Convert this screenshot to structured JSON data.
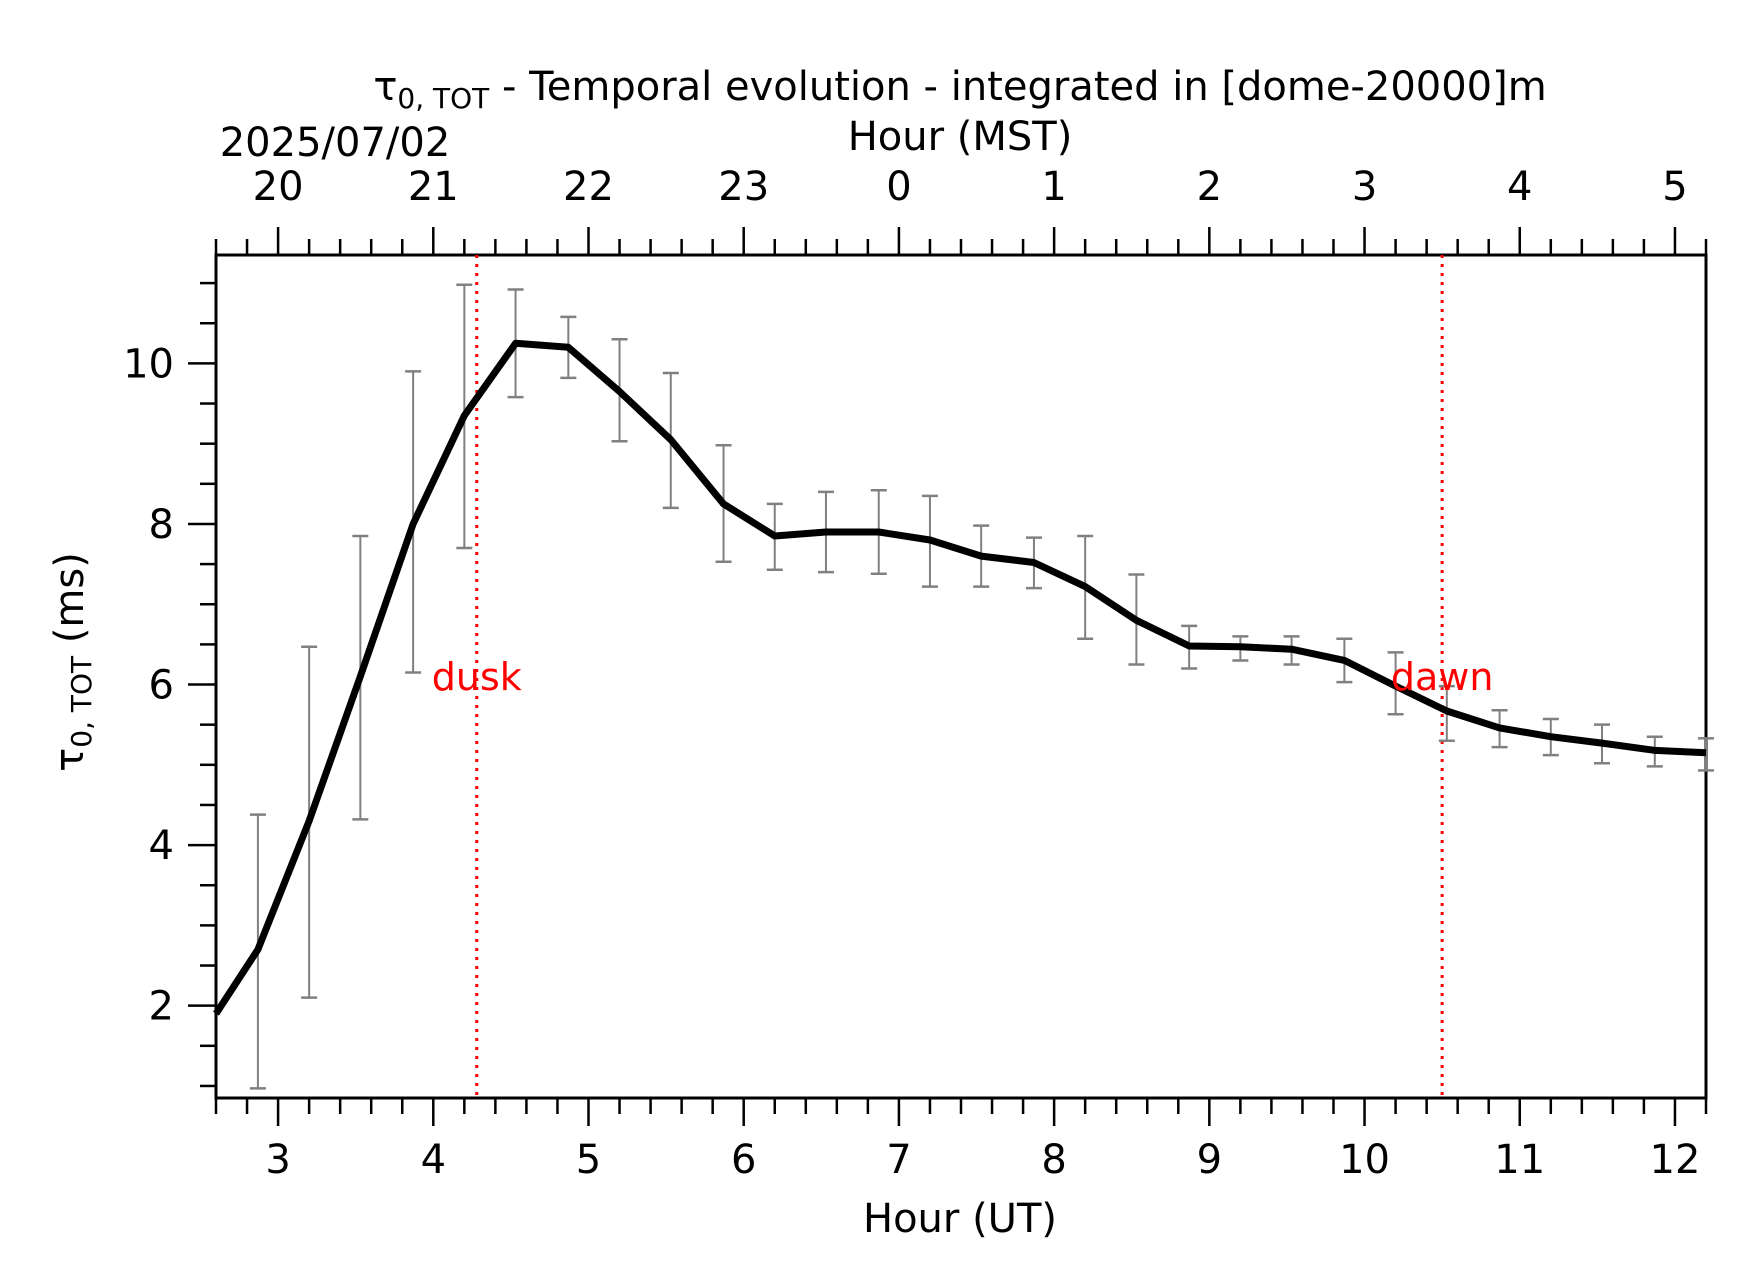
{
  "chart_data": {
    "type": "line",
    "title": "τ0,TOT - Temporal evolution - integrated in [dome-20000]m",
    "title_symbol": "τ",
    "title_subscript": "0, TOT",
    "title_rest": " - Temporal evolution - integrated in [dome-20000]m",
    "date_label": "2025/07/02",
    "xlabel": "Hour (UT)",
    "x2label": "Hour (MST)",
    "ylabel_symbol": "τ",
    "ylabel_subscript": "0, TOT",
    "ylabel_rest": " (ms)",
    "xlim": [
      2.6,
      12.2
    ],
    "ylim": [
      0.85,
      11.35
    ],
    "x_ticks": [
      3,
      4,
      5,
      6,
      7,
      8,
      9,
      10,
      11,
      12
    ],
    "x_tick_labels": [
      "3",
      "4",
      "5",
      "6",
      "7",
      "8",
      "9",
      "10",
      "11",
      "12"
    ],
    "x2_ticks": [
      3,
      4,
      5,
      6,
      7,
      8,
      9,
      10,
      11,
      12
    ],
    "x2_tick_labels": [
      "20",
      "21",
      "22",
      "23",
      "0",
      "1",
      "2",
      "3",
      "4",
      "5"
    ],
    "y_ticks": [
      2,
      4,
      6,
      8,
      10
    ],
    "y_tick_labels": [
      "2",
      "4",
      "6",
      "8",
      "10"
    ],
    "grid": false,
    "line_color": "#000000",
    "errorbar_color": "#808080",
    "marker_color": "#ff0000",
    "series": [
      {
        "x": [
          2.6,
          2.87,
          3.2,
          3.53,
          3.87,
          4.2,
          4.53,
          4.87,
          5.2,
          5.53,
          5.87,
          6.2,
          6.53,
          6.87,
          7.2,
          7.53,
          7.87,
          8.2,
          8.53,
          8.87,
          9.2,
          9.53,
          9.87,
          10.2,
          10.53,
          10.87,
          11.2,
          11.53,
          11.87,
          12.2
        ],
        "y": [
          1.9,
          2.7,
          4.3,
          6.1,
          8.0,
          9.35,
          10.25,
          10.2,
          9.65,
          9.05,
          8.25,
          7.85,
          7.9,
          7.9,
          7.8,
          7.6,
          7.52,
          7.22,
          6.8,
          6.48,
          6.47,
          6.44,
          6.3,
          5.98,
          5.67,
          5.46,
          5.35,
          5.27,
          5.18,
          5.15
        ],
        "yerr_low": [
          null,
          0.97,
          2.1,
          4.32,
          6.15,
          7.7,
          9.58,
          9.82,
          9.03,
          8.2,
          7.53,
          7.43,
          7.4,
          7.38,
          7.22,
          7.22,
          7.2,
          6.57,
          6.25,
          6.2,
          6.3,
          6.25,
          6.03,
          5.63,
          5.3,
          5.22,
          5.12,
          5.02,
          4.98,
          4.93
        ],
        "yerr_high": [
          null,
          4.38,
          6.47,
          7.85,
          9.9,
          10.98,
          10.92,
          10.58,
          10.3,
          9.88,
          8.98,
          8.25,
          8.4,
          8.42,
          8.35,
          7.98,
          7.83,
          7.85,
          7.37,
          6.73,
          6.6,
          6.6,
          6.57,
          6.4,
          5.98,
          5.68,
          5.57,
          5.5,
          5.35,
          5.33
        ]
      }
    ],
    "annotations": [
      {
        "label": "dusk",
        "x": 4.28
      },
      {
        "label": "dawn",
        "x": 10.5
      }
    ]
  }
}
